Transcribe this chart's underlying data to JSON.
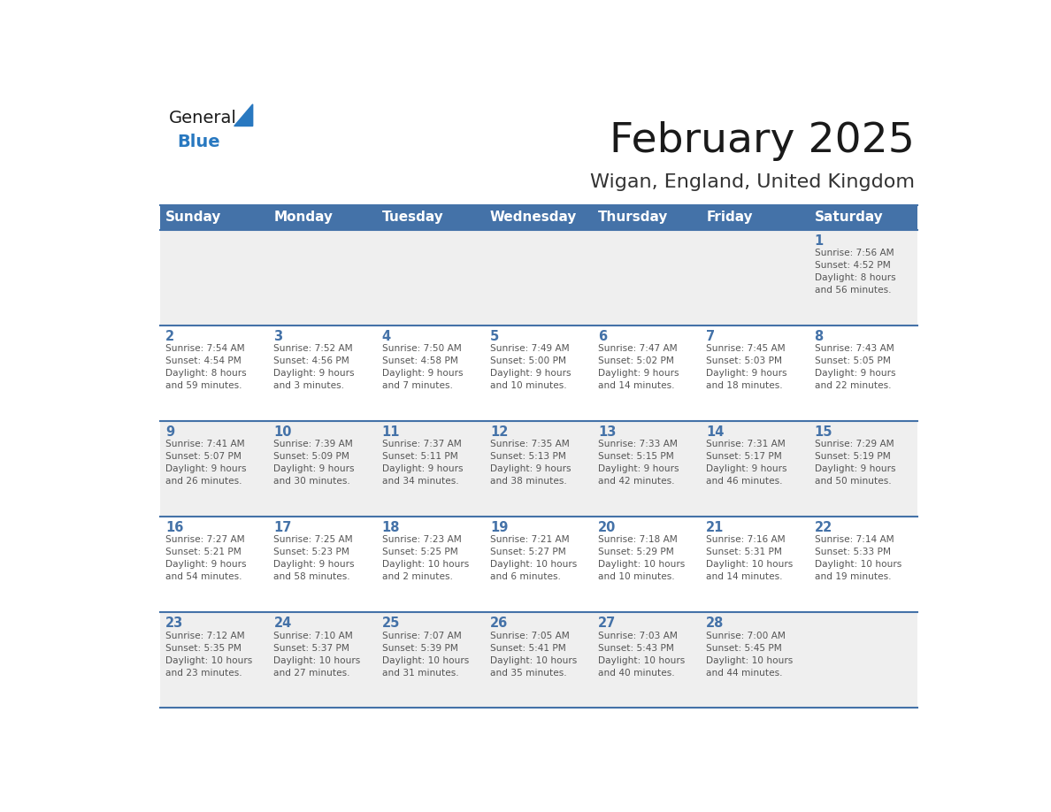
{
  "title": "February 2025",
  "subtitle": "Wigan, England, United Kingdom",
  "days_of_week": [
    "Sunday",
    "Monday",
    "Tuesday",
    "Wednesday",
    "Thursday",
    "Friday",
    "Saturday"
  ],
  "header_bg": "#4472a8",
  "header_text_color": "#ffffff",
  "cell_bg_light": "#f0f0f0",
  "cell_bg_white": "#ffffff",
  "day_number_color": "#4472a8",
  "text_color": "#555555",
  "border_color": "#4472a8",
  "title_color": "#1a1a1a",
  "subtitle_color": "#333333",
  "logo_general_color": "#1a1a1a",
  "logo_blue_color": "#2878c0",
  "logo_triangle_color": "#2878c0",
  "weeks": [
    [
      {
        "day": null,
        "info": ""
      },
      {
        "day": null,
        "info": ""
      },
      {
        "day": null,
        "info": ""
      },
      {
        "day": null,
        "info": ""
      },
      {
        "day": null,
        "info": ""
      },
      {
        "day": null,
        "info": ""
      },
      {
        "day": 1,
        "info": "Sunrise: 7:56 AM\nSunset: 4:52 PM\nDaylight: 8 hours\nand 56 minutes."
      }
    ],
    [
      {
        "day": 2,
        "info": "Sunrise: 7:54 AM\nSunset: 4:54 PM\nDaylight: 8 hours\nand 59 minutes."
      },
      {
        "day": 3,
        "info": "Sunrise: 7:52 AM\nSunset: 4:56 PM\nDaylight: 9 hours\nand 3 minutes."
      },
      {
        "day": 4,
        "info": "Sunrise: 7:50 AM\nSunset: 4:58 PM\nDaylight: 9 hours\nand 7 minutes."
      },
      {
        "day": 5,
        "info": "Sunrise: 7:49 AM\nSunset: 5:00 PM\nDaylight: 9 hours\nand 10 minutes."
      },
      {
        "day": 6,
        "info": "Sunrise: 7:47 AM\nSunset: 5:02 PM\nDaylight: 9 hours\nand 14 minutes."
      },
      {
        "day": 7,
        "info": "Sunrise: 7:45 AM\nSunset: 5:03 PM\nDaylight: 9 hours\nand 18 minutes."
      },
      {
        "day": 8,
        "info": "Sunrise: 7:43 AM\nSunset: 5:05 PM\nDaylight: 9 hours\nand 22 minutes."
      }
    ],
    [
      {
        "day": 9,
        "info": "Sunrise: 7:41 AM\nSunset: 5:07 PM\nDaylight: 9 hours\nand 26 minutes."
      },
      {
        "day": 10,
        "info": "Sunrise: 7:39 AM\nSunset: 5:09 PM\nDaylight: 9 hours\nand 30 minutes."
      },
      {
        "day": 11,
        "info": "Sunrise: 7:37 AM\nSunset: 5:11 PM\nDaylight: 9 hours\nand 34 minutes."
      },
      {
        "day": 12,
        "info": "Sunrise: 7:35 AM\nSunset: 5:13 PM\nDaylight: 9 hours\nand 38 minutes."
      },
      {
        "day": 13,
        "info": "Sunrise: 7:33 AM\nSunset: 5:15 PM\nDaylight: 9 hours\nand 42 minutes."
      },
      {
        "day": 14,
        "info": "Sunrise: 7:31 AM\nSunset: 5:17 PM\nDaylight: 9 hours\nand 46 minutes."
      },
      {
        "day": 15,
        "info": "Sunrise: 7:29 AM\nSunset: 5:19 PM\nDaylight: 9 hours\nand 50 minutes."
      }
    ],
    [
      {
        "day": 16,
        "info": "Sunrise: 7:27 AM\nSunset: 5:21 PM\nDaylight: 9 hours\nand 54 minutes."
      },
      {
        "day": 17,
        "info": "Sunrise: 7:25 AM\nSunset: 5:23 PM\nDaylight: 9 hours\nand 58 minutes."
      },
      {
        "day": 18,
        "info": "Sunrise: 7:23 AM\nSunset: 5:25 PM\nDaylight: 10 hours\nand 2 minutes."
      },
      {
        "day": 19,
        "info": "Sunrise: 7:21 AM\nSunset: 5:27 PM\nDaylight: 10 hours\nand 6 minutes."
      },
      {
        "day": 20,
        "info": "Sunrise: 7:18 AM\nSunset: 5:29 PM\nDaylight: 10 hours\nand 10 minutes."
      },
      {
        "day": 21,
        "info": "Sunrise: 7:16 AM\nSunset: 5:31 PM\nDaylight: 10 hours\nand 14 minutes."
      },
      {
        "day": 22,
        "info": "Sunrise: 7:14 AM\nSunset: 5:33 PM\nDaylight: 10 hours\nand 19 minutes."
      }
    ],
    [
      {
        "day": 23,
        "info": "Sunrise: 7:12 AM\nSunset: 5:35 PM\nDaylight: 10 hours\nand 23 minutes."
      },
      {
        "day": 24,
        "info": "Sunrise: 7:10 AM\nSunset: 5:37 PM\nDaylight: 10 hours\nand 27 minutes."
      },
      {
        "day": 25,
        "info": "Sunrise: 7:07 AM\nSunset: 5:39 PM\nDaylight: 10 hours\nand 31 minutes."
      },
      {
        "day": 26,
        "info": "Sunrise: 7:05 AM\nSunset: 5:41 PM\nDaylight: 10 hours\nand 35 minutes."
      },
      {
        "day": 27,
        "info": "Sunrise: 7:03 AM\nSunset: 5:43 PM\nDaylight: 10 hours\nand 40 minutes."
      },
      {
        "day": 28,
        "info": "Sunrise: 7:00 AM\nSunset: 5:45 PM\nDaylight: 10 hours\nand 44 minutes."
      },
      {
        "day": null,
        "info": ""
      }
    ]
  ],
  "row_bg": [
    "#efefef",
    "#ffffff",
    "#efefef",
    "#ffffff",
    "#efefef"
  ]
}
